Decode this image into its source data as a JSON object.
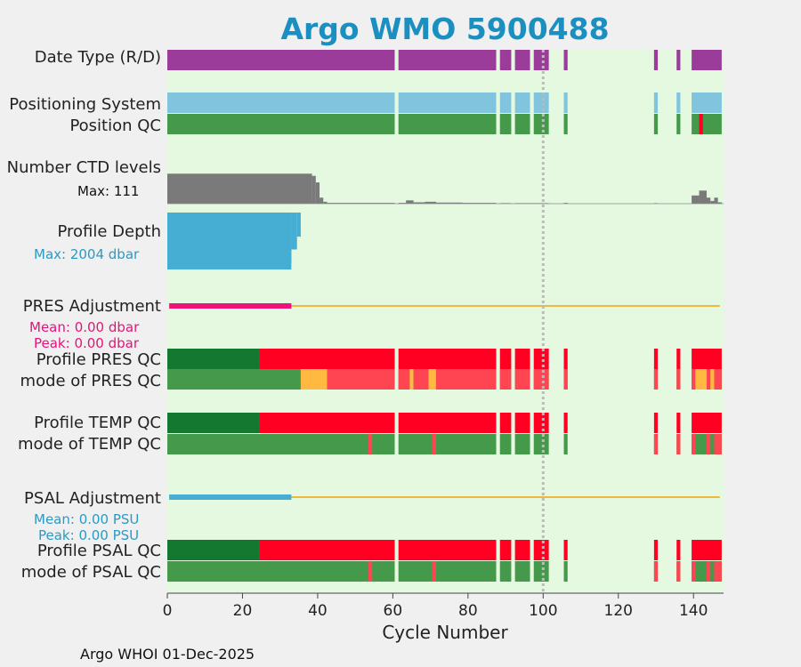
{
  "chart_data": {
    "type": "bar",
    "title": "Argo WMO 5900488",
    "xlabel": "Cycle Number",
    "footer": "Argo WHOI 01-Dec-2025",
    "xlim": [
      0,
      148
    ],
    "xticks": [
      0,
      20,
      40,
      60,
      80,
      100,
      120,
      140
    ],
    "reference_line_x": 100,
    "cycle_segments": [
      [
        0,
        60.5
      ],
      [
        61.5,
        87.5
      ],
      [
        88.5,
        91.5
      ],
      [
        92.5,
        96.5
      ],
      [
        97.5,
        101.5
      ],
      [
        105.5,
        106.5
      ],
      [
        129.5,
        130.5
      ],
      [
        135.5,
        136.5
      ],
      [
        139.5,
        147.5
      ]
    ],
    "row_labels": {
      "date_type": "Date Type (R/D)",
      "positioning_system": "Positioning System",
      "position_qc": "Position QC",
      "ctd_levels": "Number CTD levels",
      "profile_depth": "Profile Depth",
      "pres_adjustment": "PRES Adjustment",
      "profile_pres_qc": "Profile PRES QC",
      "mode_pres_qc": "mode of PRES QC",
      "profile_temp_qc": "Profile TEMP QC",
      "mode_temp_qc": "mode of TEMP QC",
      "psal_adjustment": "PSAL Adjustment",
      "profile_psal_qc": "Profile PSAL QC",
      "mode_psal_qc": "mode of PSAL QC"
    },
    "annotations": {
      "ctd_max": "Max: 111",
      "depth_max": "Max: 2004 dbar",
      "pres_mean": "Mean: 0.00 dbar",
      "pres_peak": "Peak: 0.00 dbar",
      "psal_mean": "Mean: 0.00 PSU",
      "psal_peak": "Peak: 0.00 PSU"
    },
    "ctd_levels_max": 111,
    "ctd_levels": [
      {
        "start": 0,
        "end": 38.5,
        "value": 110
      },
      {
        "start": 38.5,
        "end": 39.5,
        "value": 102
      },
      {
        "start": 39.5,
        "end": 40.5,
        "value": 78
      },
      {
        "start": 40.5,
        "end": 41.5,
        "value": 22
      },
      {
        "start": 41.5,
        "end": 42.5,
        "value": 7
      },
      {
        "start": 42.5,
        "end": 60.5,
        "value": 3
      },
      {
        "start": 61.5,
        "end": 63.5,
        "value": 3
      },
      {
        "start": 63.5,
        "end": 65.5,
        "value": 12
      },
      {
        "start": 65.5,
        "end": 68.5,
        "value": 5
      },
      {
        "start": 68.5,
        "end": 71.5,
        "value": 7
      },
      {
        "start": 71.5,
        "end": 78.5,
        "value": 4
      },
      {
        "start": 78.5,
        "end": 87.5,
        "value": 3
      },
      {
        "start": 88.5,
        "end": 91.5,
        "value": 2
      },
      {
        "start": 92.5,
        "end": 101.5,
        "value": 2
      },
      {
        "start": 105.5,
        "end": 106.5,
        "value": 3
      },
      {
        "start": 129.5,
        "end": 130.5,
        "value": 2
      },
      {
        "start": 139.5,
        "end": 141.5,
        "value": 30
      },
      {
        "start": 141.5,
        "end": 143.5,
        "value": 48
      },
      {
        "start": 143.5,
        "end": 144.5,
        "value": 22
      },
      {
        "start": 144.5,
        "end": 145.5,
        "value": 10
      },
      {
        "start": 145.5,
        "end": 146.5,
        "value": 22
      },
      {
        "start": 146.5,
        "end": 147.5,
        "value": 5
      }
    ],
    "profile_depth_max": 2004,
    "profile_depth": [
      {
        "start": 0,
        "end": 33,
        "value": 2004,
        "shallow": 1780
      },
      {
        "start": 33,
        "end": 34.5,
        "value": 2004,
        "shallow": 1300
      },
      {
        "start": 34.5,
        "end": 35.5,
        "value": 2004,
        "shallow": 850
      }
    ],
    "pres_adjustment": {
      "end": 33,
      "value": 0.0,
      "line_end": 147
    },
    "psal_adjustment": {
      "end": 33,
      "value": 0.0,
      "line_end": 147
    },
    "colors": {
      "background": "#f0f0f0",
      "plot_bg": "#e5f8e0",
      "title": "#1a8fc0",
      "date_type": "#9b3c9b",
      "positioning": "#80c4de",
      "qc_good": "#45994a",
      "qc_profile_good": "#157830",
      "qc_profile_bad": "#ff0022",
      "qc_bad_light": "#ff4551",
      "qc_probably_bad": "#ffb840",
      "ctd": "#7a7a7a",
      "depth": "#45aed2",
      "pres_adj": "#ee137a",
      "psal_adj": "#45aed2",
      "zero_line": "#f0b840",
      "ref_line": "#bbbbbb"
    },
    "position_qc_flags": [
      {
        "x": 142,
        "flag": "bad"
      }
    ],
    "profile_pres_qc": [
      {
        "start": 0,
        "end": 24.5,
        "flag": "A"
      },
      {
        "start": 24.5,
        "end": 148,
        "flag": "F"
      }
    ],
    "mode_pres_qc": [
      {
        "start": 35.5,
        "end": 42.5,
        "flag": "probably_bad"
      },
      {
        "start": 42.5,
        "end": 64.5,
        "flag": "bad"
      },
      {
        "start": 64.5,
        "end": 65.5,
        "flag": "probably_bad"
      },
      {
        "start": 65.5,
        "end": 69.5,
        "flag": "bad"
      },
      {
        "start": 69.5,
        "end": 71.5,
        "flag": "probably_bad"
      },
      {
        "start": 71.5,
        "end": 148,
        "flag": "bad"
      },
      {
        "start": 140.5,
        "end": 141.5,
        "flag": "probably_bad"
      },
      {
        "start": 141.5,
        "end": 143.5,
        "flag": "probably_bad"
      },
      {
        "start": 144.5,
        "end": 145.5,
        "flag": "probably_bad"
      }
    ],
    "profile_temp_qc": [
      {
        "start": 0,
        "end": 24.5,
        "flag": "A"
      },
      {
        "start": 24.5,
        "end": 148,
        "flag": "F"
      }
    ],
    "mode_temp_qc": [
      {
        "start": 53.5,
        "end": 54.5,
        "flag": "bad"
      },
      {
        "start": 70.5,
        "end": 71.5,
        "flag": "bad"
      },
      {
        "start": 129.5,
        "end": 130.5,
        "flag": "bad"
      },
      {
        "start": 135.5,
        "end": 136.5,
        "flag": "bad"
      },
      {
        "start": 139.5,
        "end": 140.5,
        "flag": "bad"
      },
      {
        "start": 143.5,
        "end": 144.5,
        "flag": "bad"
      },
      {
        "start": 145.5,
        "end": 147.5,
        "flag": "bad"
      }
    ],
    "profile_psal_qc": [
      {
        "start": 0,
        "end": 24.5,
        "flag": "A"
      },
      {
        "start": 24.5,
        "end": 148,
        "flag": "F"
      }
    ],
    "mode_psal_qc": [
      {
        "start": 53.5,
        "end": 54.5,
        "flag": "bad"
      },
      {
        "start": 70.5,
        "end": 71.5,
        "flag": "bad"
      },
      {
        "start": 129.5,
        "end": 130.5,
        "flag": "bad"
      },
      {
        "start": 135.5,
        "end": 136.5,
        "flag": "bad"
      },
      {
        "start": 139.5,
        "end": 140.5,
        "flag": "bad"
      },
      {
        "start": 143.5,
        "end": 144.5,
        "flag": "bad"
      },
      {
        "start": 145.5,
        "end": 147.5,
        "flag": "bad"
      }
    ]
  }
}
